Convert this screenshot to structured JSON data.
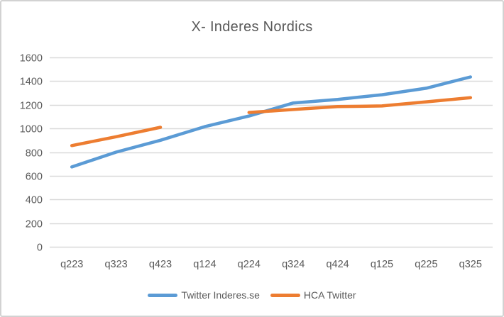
{
  "chart_data": {
    "type": "line",
    "title": "X- Inderes Nordics",
    "categories": [
      "q223",
      "q323",
      "q423",
      "q124",
      "q224",
      "q324",
      "q424",
      "q125",
      "q225",
      "q325"
    ],
    "series": [
      {
        "name": "Twitter Inderes.se",
        "color": "#5B9BD5",
        "values": [
          675,
          800,
          900,
          1015,
          1105,
          1215,
          1245,
          1285,
          1340,
          1435
        ]
      },
      {
        "name": "HCA Twitter",
        "color": "#ED7D31",
        "values": [
          855,
          930,
          1010,
          null,
          1135,
          1160,
          1185,
          1190,
          1225,
          1260
        ]
      }
    ],
    "xlabel": "",
    "ylabel": "",
    "ylim": [
      0,
      1600
    ],
    "y_ticks": [
      0,
      200,
      400,
      600,
      800,
      1000,
      1200,
      1400,
      1600
    ],
    "grid": "horizontal",
    "legend_position": "bottom"
  },
  "colors": {
    "grid": "#D9D9D9",
    "axis_text": "#595959",
    "title_text": "#595959",
    "frame_border": "#D2D2D2",
    "background": "#FFFFFF"
  }
}
